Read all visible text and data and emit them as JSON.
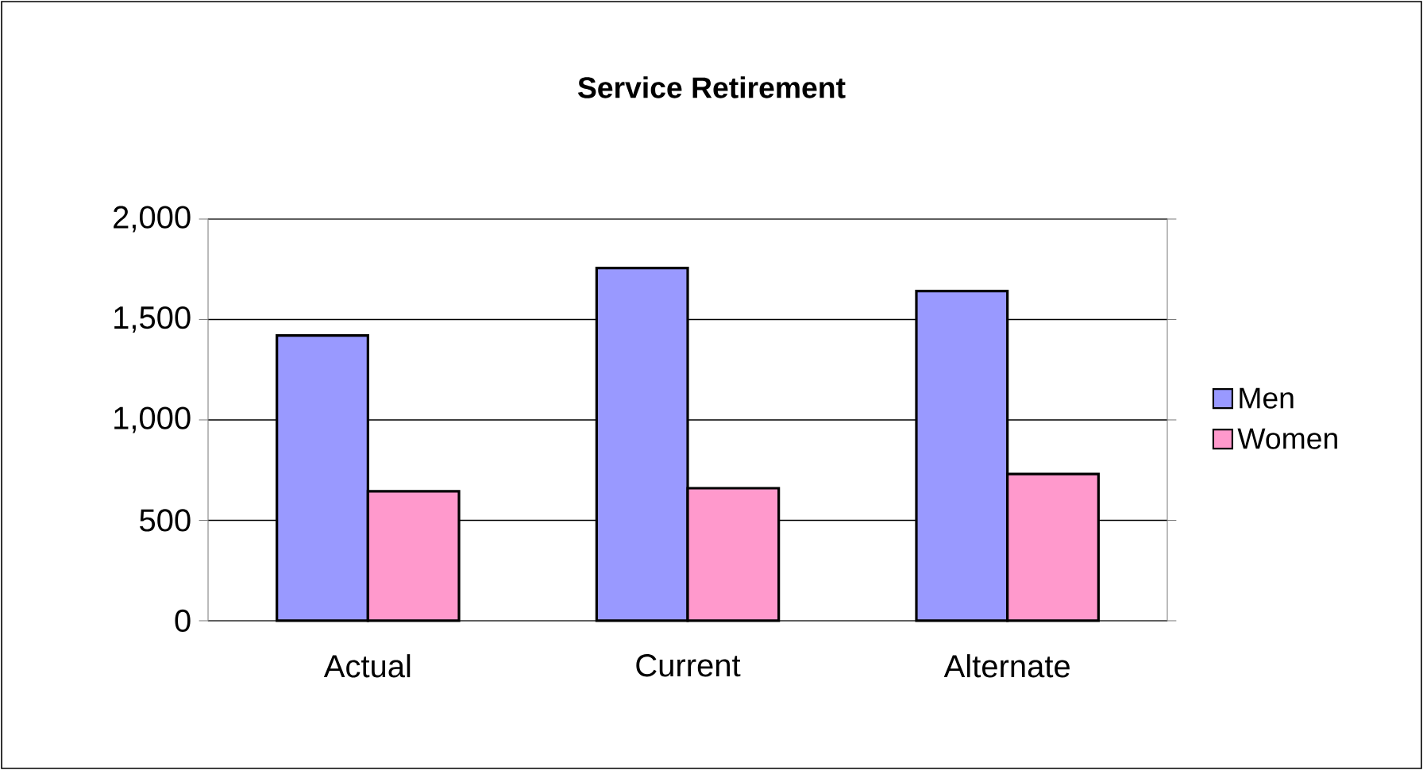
{
  "chart_data": {
    "type": "bar",
    "title": "Service Retirement",
    "categories": [
      "Actual",
      "Current",
      "Alternate"
    ],
    "series": [
      {
        "name": "Men",
        "color": "#9999ff",
        "values": [
          1420,
          1756,
          1642
        ]
      },
      {
        "name": "Women",
        "color": "#ff99cc",
        "values": [
          645,
          660,
          731
        ]
      }
    ],
    "ylim": [
      0,
      2000
    ],
    "yticks": [
      0,
      500,
      {
        "value": 1000,
        "label": "1,000"
      },
      {
        "value": 1500,
        "label": "1,500"
      },
      {
        "value": 2000,
        "label": "2,000"
      }
    ],
    "grid": "y",
    "legend": "right"
  }
}
